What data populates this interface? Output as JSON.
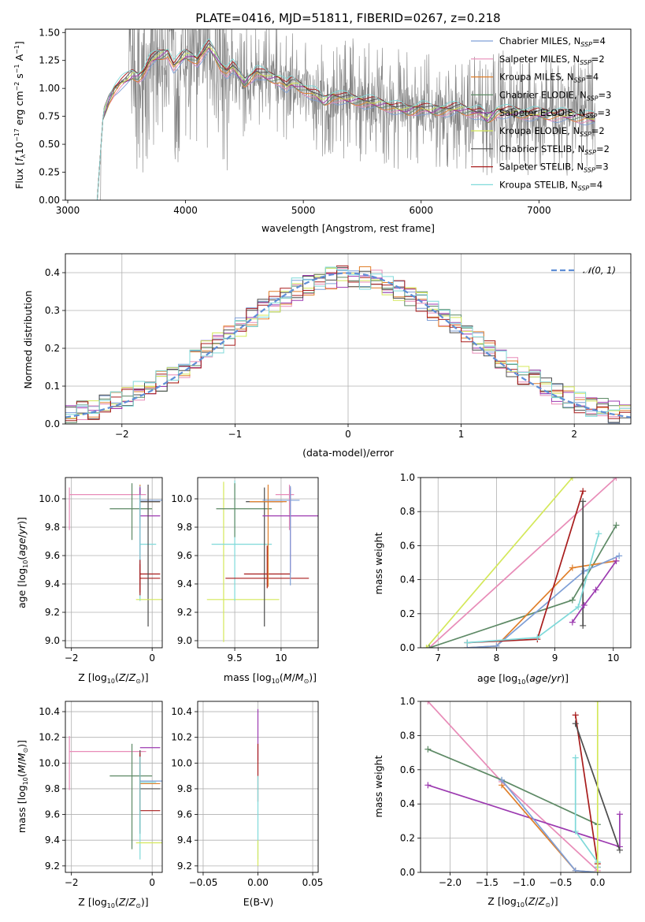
{
  "title": "PLATE=0416, MJD=51811, FIBERID=0267, z=0.218",
  "colors": {
    "Chabrier MILES": "#7f9fd6",
    "Salpeter MILES": "#e88cb8",
    "Kroupa MILES": "#e07f2a",
    "Chabrier ELODIE": "#5e8a66",
    "Salpeter ELODIE": "#9c3ab0",
    "Kroupa ELODIE": "#d4e85a",
    "Chabrier STELIB": "#4c4c4c",
    "Salpeter STELIB": "#a81c1c",
    "Kroupa STELIB": "#7fd9d9",
    "data": "#808080",
    "normal": "#5f8ed6"
  },
  "chart_data": [
    {
      "type": "line",
      "id": "spectrum",
      "xlabel": "wavelength [Angstrom, rest frame]",
      "ylabel": "Flux [f_λ 10^-17 erg cm^-2 s^-1 A^-1]",
      "xlim": [
        2980,
        7780
      ],
      "ylim": [
        0,
        1.53
      ],
      "xticks": [
        3000,
        4000,
        5000,
        6000,
        7000
      ],
      "yticks": [
        0.0,
        0.25,
        0.5,
        0.75,
        1.0,
        1.25,
        1.5
      ],
      "ytick_labels": [
        "0.00",
        "0.25",
        "0.50",
        "0.75",
        "1.00",
        "1.25",
        "1.50"
      ],
      "legend_position": "top-right",
      "legend": [
        {
          "name": "Chabrier MILES",
          "nssp": "4"
        },
        {
          "name": "Salpeter MILES",
          "nssp": "2"
        },
        {
          "name": "Kroupa MILES",
          "nssp": "4"
        },
        {
          "name": "Chabrier ELODIE",
          "nssp": "3"
        },
        {
          "name": "Salpeter ELODIE",
          "nssp": "3"
        },
        {
          "name": "Kroupa ELODIE",
          "nssp": "2"
        },
        {
          "name": "Chabrier STELIB",
          "nssp": "2"
        },
        {
          "name": "Salpeter STELIB",
          "nssp": "3"
        },
        {
          "name": "Kroupa STELIB",
          "nssp": "4"
        }
      ],
      "model_x": [
        3250,
        3300,
        3350,
        3400,
        3450,
        3500,
        3550,
        3600,
        3650,
        3700,
        3750,
        3800,
        3850,
        3900,
        3950,
        4000,
        4050,
        4100,
        4150,
        4200,
        4250,
        4300,
        4350,
        4400,
        4500,
        4600,
        4700,
        4800,
        4860,
        4900,
        5000,
        5100,
        5175,
        5250,
        5400,
        5550,
        5700,
        5890,
        6000,
        6100,
        6300,
        6500,
        6563,
        6650,
        6800,
        7000,
        7200,
        7400,
        7500
      ],
      "model_y": [
        0.0,
        0.75,
        0.9,
        1.0,
        1.05,
        1.08,
        1.12,
        1.1,
        1.15,
        1.25,
        1.28,
        1.3,
        1.32,
        1.2,
        1.25,
        1.3,
        1.28,
        1.25,
        1.32,
        1.38,
        1.3,
        1.2,
        1.15,
        1.2,
        1.05,
        1.15,
        1.1,
        1.08,
        1.02,
        1.05,
        1.0,
        0.95,
        0.88,
        0.93,
        0.9,
        0.88,
        0.85,
        0.8,
        0.83,
        0.8,
        0.82,
        0.78,
        0.72,
        0.8,
        0.78,
        0.77,
        0.76,
        0.74,
        0.72
      ]
    },
    {
      "type": "step",
      "id": "residuals",
      "xlabel": "(data-model)/error",
      "ylabel": "Normed distribution",
      "xlim": [
        -2.5,
        2.5
      ],
      "ylim": [
        0,
        0.45
      ],
      "xticks": [
        -2,
        -1,
        0,
        1,
        2
      ],
      "yticks": [
        0.0,
        0.1,
        0.2,
        0.3,
        0.4
      ],
      "ytick_labels": [
        "0.0",
        "0.1",
        "0.2",
        "0.3",
        "0.4"
      ],
      "legend": "𝒩(0, 1)",
      "legend_position": "top-right",
      "bin_width": 0.1
    },
    {
      "type": "errorbar",
      "id": "age-vs-Z",
      "xlabel": "Z [log10(Z/Z⊙)]",
      "ylabel": "age [log10(age/yr)]",
      "xlim": [
        -2.15,
        0.25
      ],
      "ylim": [
        8.95,
        10.15
      ],
      "xticks": [
        -2,
        0
      ],
      "yticks": [
        9.0,
        9.2,
        9.4,
        9.6,
        9.8,
        10.0
      ],
      "ytick_labels": [
        "9.0",
        "9.2",
        "9.4",
        "9.6",
        "9.8",
        "10.0"
      ],
      "points": [
        {
          "model": "Salpeter MILES",
          "x": -2.05,
          "y": 10.03,
          "xl": 0.0,
          "xh": 1.9,
          "yl": 0.25,
          "yh": 0.05
        },
        {
          "model": "Chabrier ELODIE",
          "x": -0.5,
          "y": 9.93,
          "xl": 0.55,
          "xh": 0.5,
          "yl": 0.22,
          "yh": 0.18
        },
        {
          "model": "Kroupa MILES",
          "x": -0.3,
          "y": 9.98,
          "xl": 0.0,
          "xh": 0.5,
          "yl": 0.55,
          "yh": 0.12
        },
        {
          "model": "Chabrier MILES",
          "x": -0.3,
          "y": 9.99,
          "xl": 0.0,
          "xh": 0.6,
          "yl": 0.6,
          "yh": 0.1
        },
        {
          "model": "Chabrier STELIB",
          "x": -0.3,
          "y": 9.98,
          "xl": 0.0,
          "xh": 0.5,
          "yl": 0.15,
          "yh": 0.1
        },
        {
          "model": "Salpeter ELODIE",
          "x": -0.3,
          "y": 9.88,
          "xl": 0.0,
          "xh": 0.5,
          "yl": 0.4,
          "yh": 0.2
        },
        {
          "model": "Kroupa STELIB",
          "x": -0.3,
          "y": 9.68,
          "xl": 0.0,
          "xh": 0.4,
          "yl": 0.4,
          "yh": 0.35
        },
        {
          "model": "Salpeter STELIB",
          "x": -0.3,
          "y": 9.47,
          "xl": 0.0,
          "xh": 0.5,
          "yl": 0.15,
          "yh": 0.1
        },
        {
          "model": "Salpeter STELIB",
          "x": -0.3,
          "y": 9.44,
          "xl": 0.0,
          "xh": 0.5,
          "yl": 0.1,
          "yh": 0.1
        },
        {
          "model": "Chabrier STELIB",
          "x": -0.1,
          "y": 9.4,
          "xl": 0.0,
          "xh": 0.0,
          "yl": 0.3,
          "yh": 0.7
        },
        {
          "model": "Kroupa ELODIE",
          "x": 0.0,
          "y": 9.29,
          "xl": 0.4,
          "xh": 0.3,
          "yl": 0.0,
          "yh": 0.0
        }
      ]
    },
    {
      "type": "errorbar",
      "id": "age-vs-mass",
      "xlabel": "mass [log10(M/M⊙)]",
      "ylabel": "",
      "xlim": [
        9.1,
        10.4
      ],
      "ylim": [
        8.95,
        10.15
      ],
      "xticks": [
        9.5,
        10.0
      ],
      "yticks": [
        9.0,
        9.2,
        9.4,
        9.6,
        9.8,
        10.0
      ],
      "ytick_labels": [
        "9.0",
        "9.2",
        "9.4",
        "9.6",
        "9.8",
        "10.0"
      ],
      "points": [
        {
          "model": "Kroupa ELODIE",
          "x": 9.38,
          "y": 9.29,
          "xl": 0.18,
          "xh": 0.6,
          "yl": 0.3,
          "yh": 0.83
        },
        {
          "model": "Kroupa STELIB",
          "x": 9.5,
          "y": 9.68,
          "xl": 0.25,
          "xh": 0.4,
          "yl": 0.4,
          "yh": 0.45
        },
        {
          "model": "Chabrier ELODIE",
          "x": 9.5,
          "y": 9.93,
          "xl": 0.2,
          "xh": 0.4,
          "yl": 0.2,
          "yh": 0.18
        },
        {
          "model": "Chabrier STELIB",
          "x": 9.82,
          "y": 9.98,
          "xl": 0.2,
          "xh": 0.2,
          "yl": 0.88,
          "yh": 0.1
        },
        {
          "model": "Salpeter STELIB",
          "x": 9.85,
          "y": 9.47,
          "xl": 0.25,
          "xh": 0.25,
          "yl": 0.1,
          "yh": 0.2
        },
        {
          "model": "Salpeter STELIB",
          "x": 9.85,
          "y": 9.44,
          "xl": 0.45,
          "xh": 0.45,
          "yl": 0.0,
          "yh": 0.0
        },
        {
          "model": "Kroupa MILES",
          "x": 9.86,
          "y": 9.98,
          "xl": 0.2,
          "xh": 0.2,
          "yl": 0.6,
          "yh": 0.12
        },
        {
          "model": "Salpeter MILES",
          "x": 10.09,
          "y": 10.03,
          "xl": 0.15,
          "xh": 0.05,
          "yl": 0.25,
          "yh": 0.07
        },
        {
          "model": "Salpeter ELODIE",
          "x": 10.1,
          "y": 9.88,
          "xl": 0.3,
          "xh": 0.3,
          "yl": 0.4,
          "yh": 0.2
        },
        {
          "model": "Chabrier MILES",
          "x": 10.1,
          "y": 9.99,
          "xl": 0.3,
          "xh": 0.1,
          "yl": 0.6,
          "yh": 0.1
        }
      ]
    },
    {
      "type": "line",
      "id": "mass-weight-vs-age",
      "xlabel": "age [log10(age/yr)]",
      "ylabel": "mass weight",
      "xlim": [
        6.7,
        10.3
      ],
      "ylim": [
        0,
        1
      ],
      "xticks": [
        7,
        8,
        9,
        10
      ],
      "yticks": [
        0.0,
        0.2,
        0.4,
        0.6,
        0.8,
        1.0
      ],
      "ytick_labels": [
        "0.0",
        "0.2",
        "0.4",
        "0.6",
        "0.8",
        "1.0"
      ],
      "series": [
        {
          "model": "Kroupa ELODIE",
          "x": [
            6.8,
            9.3
          ],
          "y": [
            0.0,
            1.0
          ]
        },
        {
          "model": "Salpeter MILES",
          "x": [
            6.85,
            10.05
          ],
          "y": [
            0.0,
            1.0
          ]
        },
        {
          "model": "Chabrier ELODIE",
          "x": [
            6.85,
            9.3,
            10.05
          ],
          "y": [
            0.0,
            0.28,
            0.72
          ]
        },
        {
          "model": "Kroupa MILES",
          "x": [
            7.5,
            8.0,
            9.3,
            10.05
          ],
          "y": [
            0.0,
            0.01,
            0.47,
            0.51
          ]
        },
        {
          "model": "Chabrier MILES",
          "x": [
            7.5,
            8.0,
            9.5,
            10.1
          ],
          "y": [
            0.0,
            0.01,
            0.45,
            0.54
          ]
        },
        {
          "model": "Salpeter STELIB",
          "x": [
            7.5,
            8.7,
            9.48
          ],
          "y": [
            0.03,
            0.05,
            0.92
          ]
        },
        {
          "model": "Chabrier STELIB",
          "x": [
            9.48,
            9.48
          ],
          "y": [
            0.13,
            0.86
          ]
        },
        {
          "model": "Salpeter ELODIE",
          "x": [
            9.3,
            9.5,
            9.7,
            10.05
          ],
          "y": [
            0.15,
            0.25,
            0.34,
            0.51
          ]
        },
        {
          "model": "Kroupa STELIB",
          "x": [
            7.5,
            8.7,
            9.4,
            9.75
          ],
          "y": [
            0.03,
            0.06,
            0.24,
            0.67
          ]
        }
      ]
    },
    {
      "type": "errorbar",
      "id": "mass-vs-Z",
      "xlabel": "Z [log10(Z/Z⊙)]",
      "ylabel": "mass [log10(M/M⊙)]",
      "xlim": [
        -2.15,
        0.25
      ],
      "ylim": [
        9.15,
        10.48
      ],
      "xticks": [
        -2,
        0
      ],
      "yticks": [
        9.2,
        9.4,
        9.6,
        9.8,
        10.0,
        10.2,
        10.4
      ],
      "ytick_labels": [
        "9.2",
        "9.4",
        "9.6",
        "9.8",
        "10.0",
        "10.2",
        "10.4"
      ],
      "points": [
        {
          "model": "Salpeter MILES",
          "x": -2.05,
          "y": 10.09,
          "xl": 0.0,
          "xh": 1.9,
          "yl": 0.3,
          "yh": 0.12
        },
        {
          "model": "Chabrier ELODIE",
          "x": -0.5,
          "y": 9.9,
          "xl": 0.55,
          "xh": 0.5,
          "yl": 0.57,
          "yh": 0.25
        },
        {
          "model": "Kroupa MILES",
          "x": -0.3,
          "y": 9.84,
          "xl": 0.0,
          "xh": 0.5,
          "yl": 0.35,
          "yh": 0.22
        },
        {
          "model": "Chabrier MILES",
          "x": -0.3,
          "y": 9.86,
          "xl": 0.0,
          "xh": 0.6,
          "yl": 0.4,
          "yh": 0.2
        },
        {
          "model": "Chabrier STELIB",
          "x": -0.3,
          "y": 9.8,
          "xl": 0.0,
          "xh": 0.5,
          "yl": 0.35,
          "yh": 0.3
        },
        {
          "model": "Salpeter STELIB",
          "x": -0.3,
          "y": 9.63,
          "xl": 0.0,
          "xh": 0.5,
          "yl": 0.0,
          "yh": 0.45
        },
        {
          "model": "Salpeter ELODIE",
          "x": -0.3,
          "y": 10.12,
          "xl": 0.0,
          "xh": 0.5,
          "yl": 0.0,
          "yh": 0.0
        },
        {
          "model": "Kroupa STELIB",
          "x": -0.3,
          "y": 9.85,
          "xl": 0.0,
          "xh": 0.4,
          "yl": 0.6,
          "yh": 0.2
        },
        {
          "model": "Kroupa ELODIE",
          "x": 0.0,
          "y": 9.38,
          "xl": 0.4,
          "xh": 0.3,
          "yl": 0.0,
          "yh": 0.0
        }
      ]
    },
    {
      "type": "errorbar",
      "id": "mass-vs-EBV",
      "xlabel": "E(B-V)",
      "ylabel": "",
      "xlim": [
        -0.055,
        0.055
      ],
      "ylim": [
        9.15,
        10.48
      ],
      "xticks": [
        -0.05,
        0.0,
        0.05
      ],
      "xtick_labels": [
        "−0.05",
        "0.00",
        "0.05"
      ],
      "yticks": [
        9.2,
        9.4,
        9.6,
        9.8,
        10.0,
        10.2,
        10.4
      ],
      "ytick_labels": [
        "9.2",
        "9.4",
        "9.6",
        "9.8",
        "10.0",
        "10.2",
        "10.4"
      ],
      "points": [
        {
          "model": "Salpeter ELODIE",
          "x": 0.0,
          "y": 10.12,
          "yl": 0.1,
          "yh": 0.3
        },
        {
          "model": "Salpeter STELIB",
          "x": 0.0,
          "y": 9.9,
          "yl": 0.2,
          "yh": 0.25
        },
        {
          "model": "Kroupa STELIB",
          "x": 0.0,
          "y": 9.6,
          "yl": 0.35,
          "yh": 0.3
        },
        {
          "model": "Kroupa ELODIE",
          "x": 0.0,
          "y": 9.3,
          "yl": 0.1,
          "yh": 0.1
        }
      ]
    },
    {
      "type": "line",
      "id": "mass-weight-vs-Z",
      "xlabel": "Z [log10(Z/Z⊙)]",
      "ylabel": "mass weight",
      "xlim": [
        -2.4,
        0.45
      ],
      "ylim": [
        0,
        1
      ],
      "xticks": [
        -2.0,
        -1.5,
        -1.0,
        -0.5,
        0.0
      ],
      "xtick_labels": [
        "−2.0",
        "−1.5",
        "−1.0",
        "−0.5",
        "0.0"
      ],
      "yticks": [
        0.0,
        0.2,
        0.4,
        0.6,
        0.8,
        1.0
      ],
      "ytick_labels": [
        "0.0",
        "0.2",
        "0.4",
        "0.6",
        "0.8",
        "1.0"
      ],
      "series": [
        {
          "model": "Salpeter MILES",
          "x": [
            -2.3,
            -1.3,
            0.0
          ],
          "y": [
            1.0,
            0.53,
            0.01
          ]
        },
        {
          "model": "Chabrier ELODIE",
          "x": [
            -2.3,
            -1.3,
            0.0
          ],
          "y": [
            0.72,
            0.54,
            0.28
          ]
        },
        {
          "model": "Salpeter ELODIE",
          "x": [
            -2.3,
            0.3,
            0.3
          ],
          "y": [
            0.51,
            0.15,
            0.34
          ]
        },
        {
          "model": "Kroupa MILES",
          "x": [
            -1.3,
            -0.3,
            0.0
          ],
          "y": [
            0.51,
            0.01,
            0.0
          ]
        },
        {
          "model": "Chabrier MILES",
          "x": [
            -1.3,
            -0.3,
            0.0
          ],
          "y": [
            0.54,
            0.01,
            0.0
          ]
        },
        {
          "model": "Salpeter STELIB",
          "x": [
            -0.3,
            0.0,
            0.0
          ],
          "y": [
            0.92,
            0.05,
            0.03
          ]
        },
        {
          "model": "Chabrier STELIB",
          "x": [
            -0.3,
            0.3
          ],
          "y": [
            0.87,
            0.13
          ]
        },
        {
          "model": "Kroupa STELIB",
          "x": [
            -0.3,
            -0.3,
            0.0,
            0.0
          ],
          "y": [
            0.67,
            0.24,
            0.06,
            0.03
          ]
        },
        {
          "model": "Kroupa ELODIE",
          "x": [
            0.0,
            0.0
          ],
          "y": [
            0.0,
            1.0
          ]
        }
      ]
    }
  ]
}
